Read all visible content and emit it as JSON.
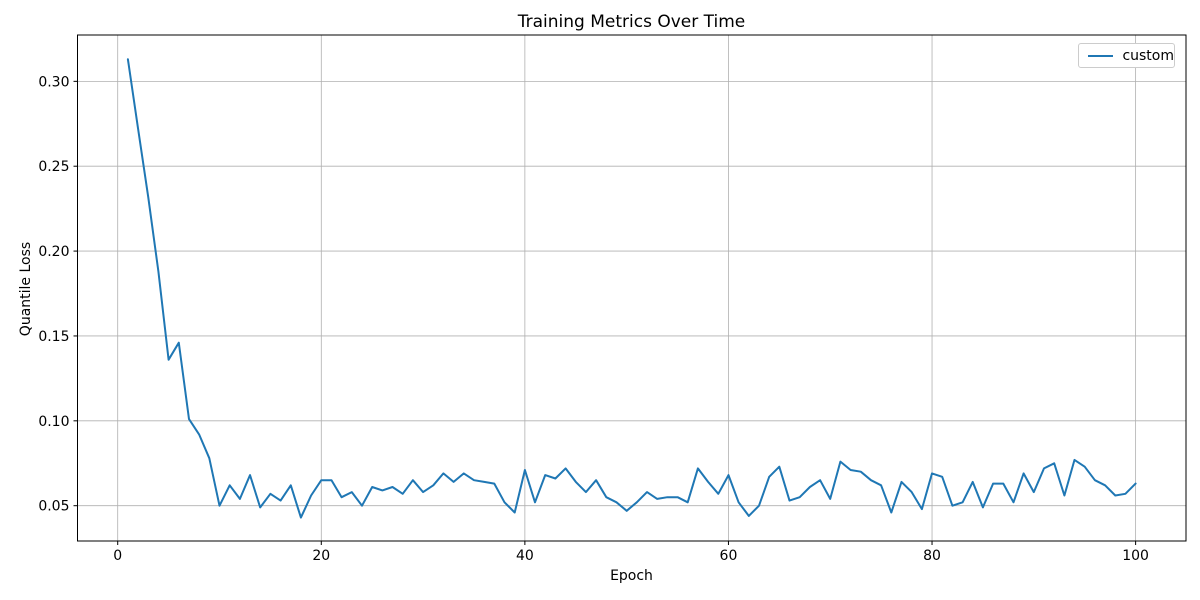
{
  "chart_data": {
    "type": "line",
    "title": "Training Metrics Over Time",
    "xlabel": "Epoch",
    "ylabel": "Quantile Loss",
    "grid": true,
    "legend_position": "upper right",
    "xlim": [
      -3.95,
      104.95
    ],
    "ylim": [
      0.0292,
      0.3273
    ],
    "xticks": [
      0,
      20,
      40,
      60,
      80,
      100
    ],
    "yticks": [
      0.05,
      0.1,
      0.15,
      0.2,
      0.25,
      0.3
    ],
    "series": [
      {
        "name": "custom",
        "color": "#1f77b4",
        "x_first_epoch": 1,
        "x_step": 1,
        "values": [
          0.313,
          0.272,
          0.232,
          0.188,
          0.136,
          0.146,
          0.101,
          0.092,
          0.078,
          0.05,
          0.062,
          0.054,
          0.068,
          0.049,
          0.057,
          0.053,
          0.062,
          0.043,
          0.056,
          0.065,
          0.065,
          0.055,
          0.058,
          0.05,
          0.061,
          0.059,
          0.061,
          0.057,
          0.065,
          0.058,
          0.062,
          0.069,
          0.064,
          0.069,
          0.065,
          0.064,
          0.063,
          0.052,
          0.046,
          0.071,
          0.052,
          0.068,
          0.066,
          0.072,
          0.064,
          0.058,
          0.065,
          0.055,
          0.052,
          0.047,
          0.052,
          0.058,
          0.054,
          0.055,
          0.055,
          0.052,
          0.072,
          0.064,
          0.057,
          0.068,
          0.052,
          0.044,
          0.05,
          0.067,
          0.073,
          0.053,
          0.055,
          0.061,
          0.065,
          0.054,
          0.076,
          0.071,
          0.07,
          0.065,
          0.062,
          0.046,
          0.064,
          0.058,
          0.048,
          0.069,
          0.067,
          0.05,
          0.052,
          0.064,
          0.049,
          0.063,
          0.063,
          0.052,
          0.069,
          0.058,
          0.072,
          0.075,
          0.056,
          0.077,
          0.073,
          0.065,
          0.062,
          0.056,
          0.057,
          0.063
        ]
      }
    ]
  },
  "colors": {
    "line": "#1f77b4",
    "grid": "#b0b0b0",
    "spine": "#000000",
    "text": "#000000",
    "legend_border": "#cccccc",
    "background": "#ffffff"
  }
}
